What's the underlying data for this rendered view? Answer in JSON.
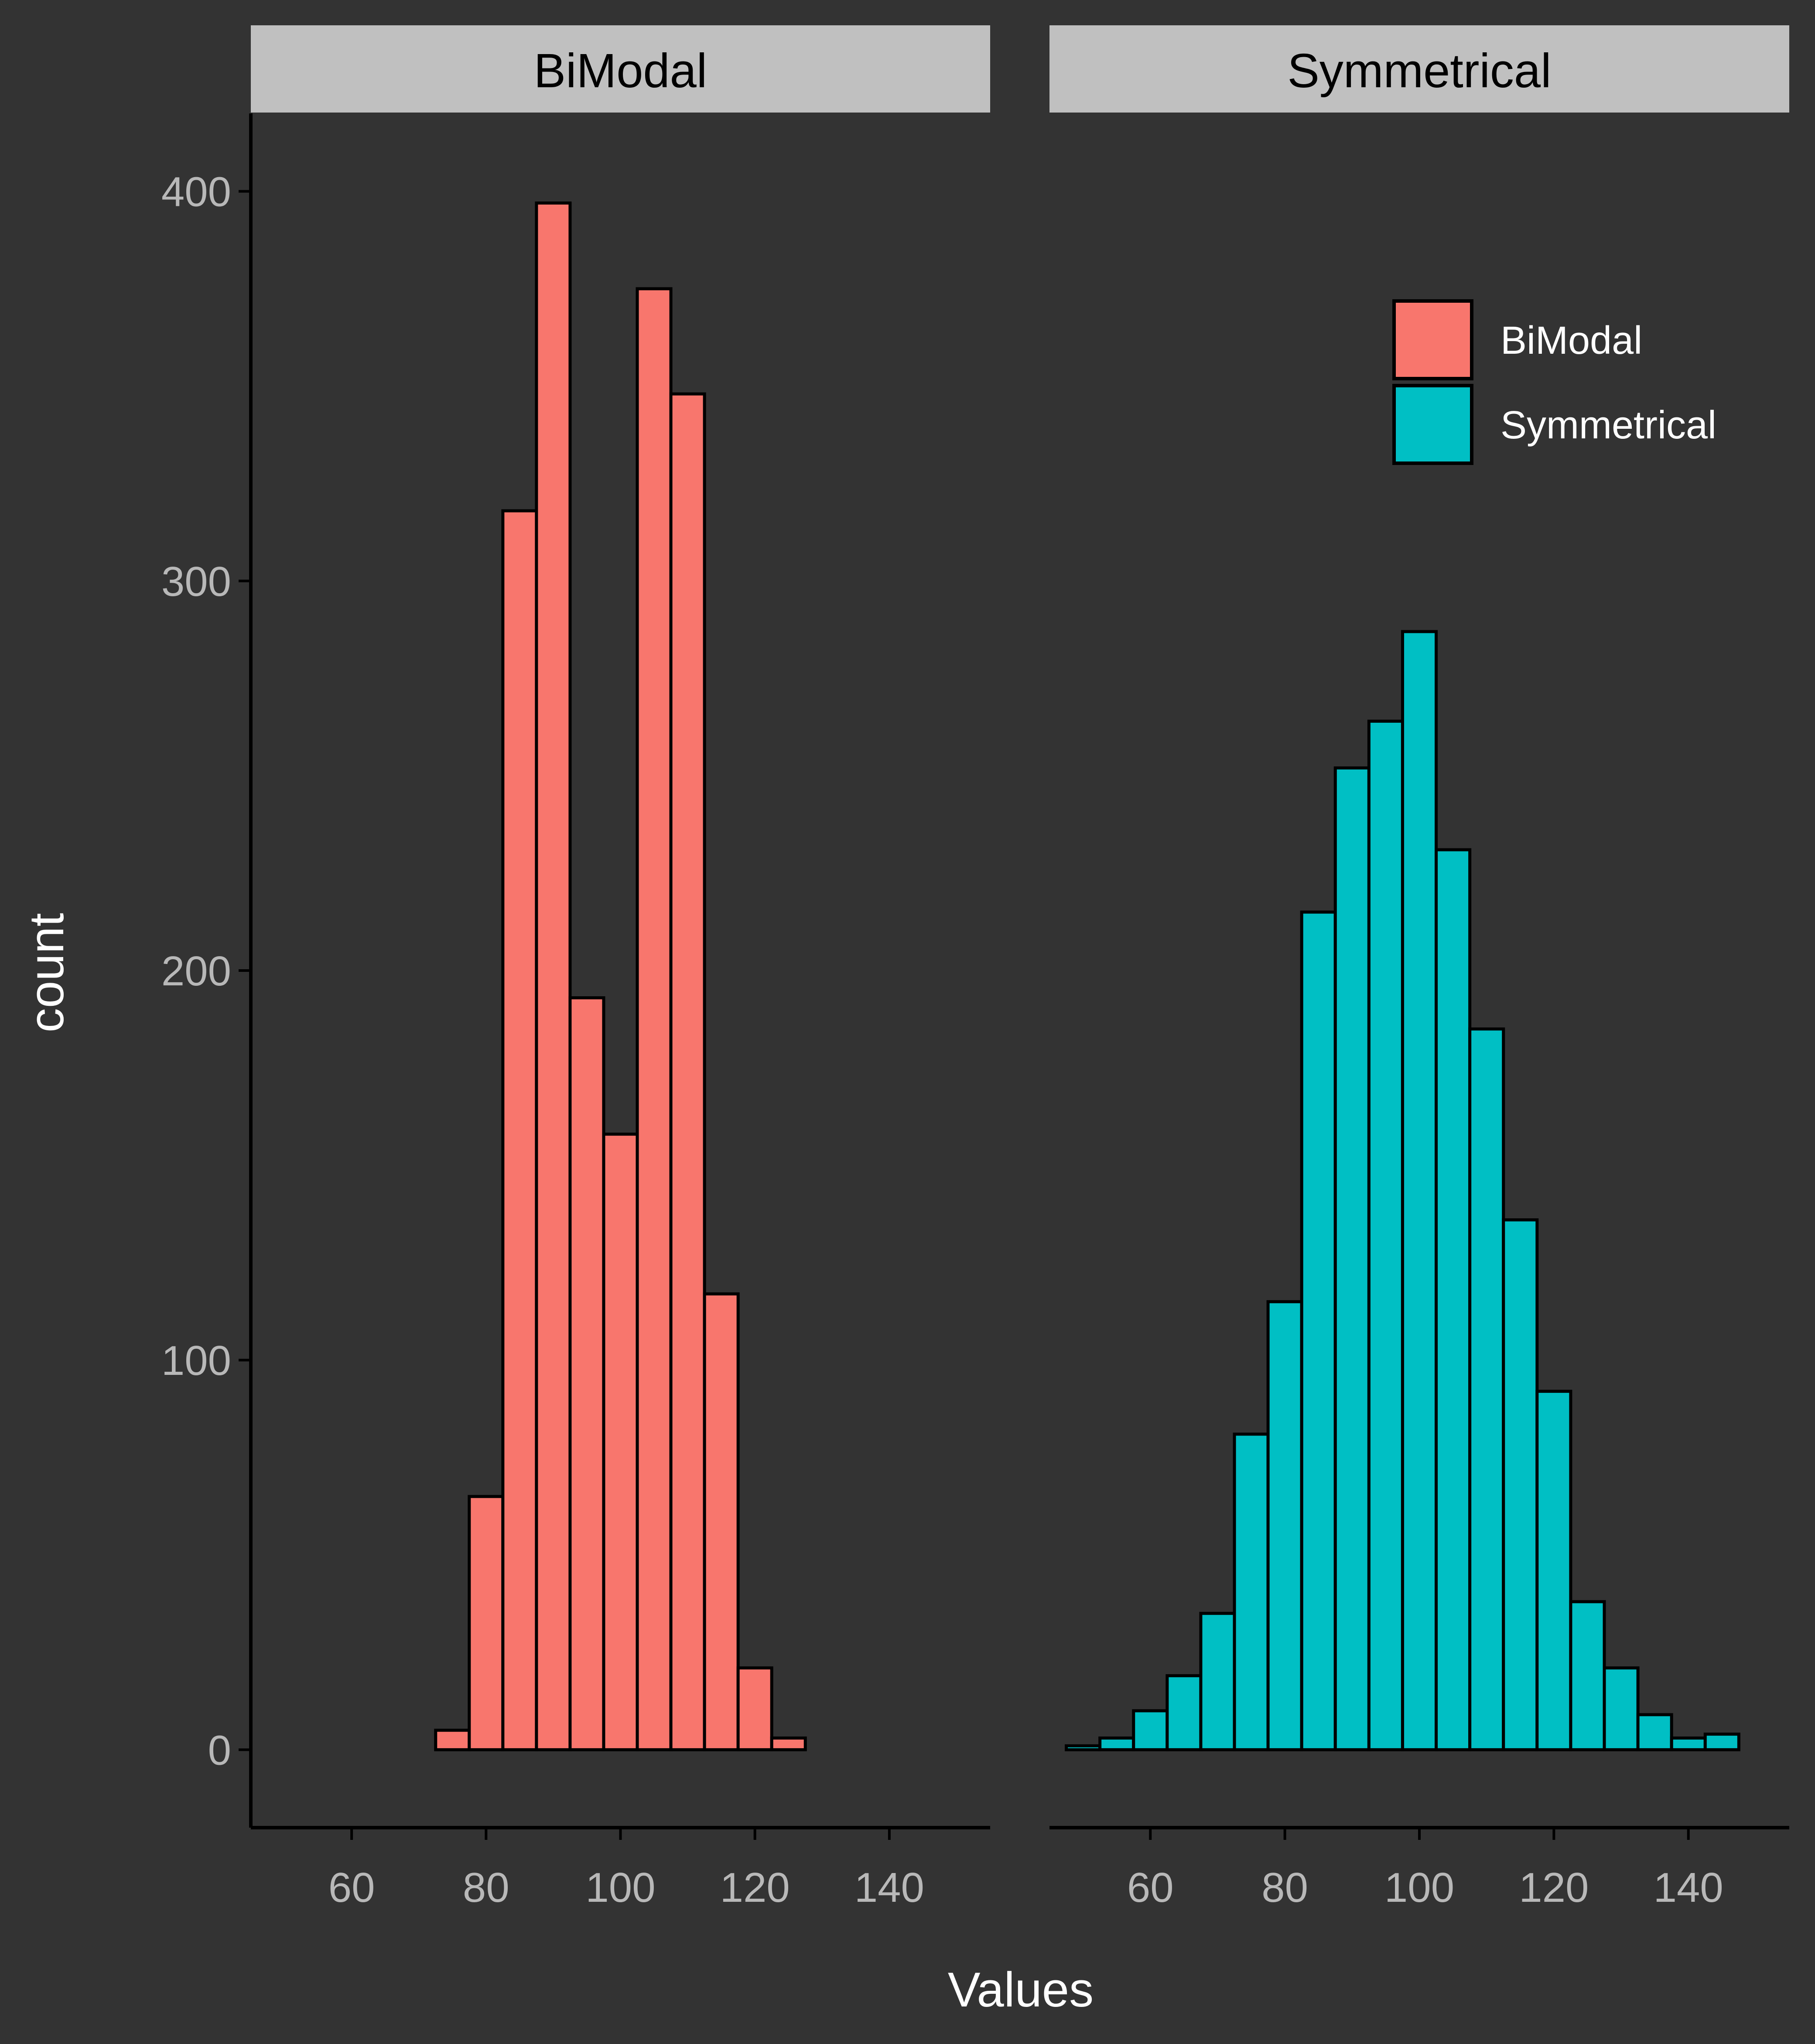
{
  "chart_data": {
    "type": "bar",
    "subtype": "histogram",
    "xlabel": "Values",
    "ylabel": "count",
    "ylim": [
      -20,
      420
    ],
    "xlim": [
      45,
      155
    ],
    "bin_width": 5,
    "y_ticks": [
      0,
      100,
      200,
      300,
      400
    ],
    "y_tick_labels": [
      "0",
      "100",
      "200",
      "300",
      "400"
    ],
    "x_ticks": [
      60,
      80,
      100,
      120,
      140
    ],
    "x_tick_labels": [
      "60",
      "80",
      "100",
      "120",
      "140"
    ],
    "grid": false,
    "legend": {
      "position": "top-right",
      "entries": [
        {
          "label": "BiModal",
          "color": "#F8766D"
        },
        {
          "label": "Symmetrical",
          "color": "#00BFC4"
        }
      ]
    },
    "panels": [
      {
        "strip": "BiModal",
        "color": "#F8766D",
        "bin_centers": [
          50,
          55,
          60,
          65,
          70,
          75,
          80,
          85,
          90,
          95,
          100,
          105,
          110,
          115,
          120,
          125,
          130,
          135,
          140,
          145,
          150
        ],
        "counts": [
          0,
          0,
          0,
          0,
          0,
          5,
          65,
          318,
          397,
          193,
          158,
          375,
          348,
          117,
          21,
          3,
          0,
          0,
          0,
          0,
          0
        ]
      },
      {
        "strip": "Symmetrical",
        "color": "#00BFC4",
        "bin_centers": [
          50,
          55,
          60,
          65,
          70,
          75,
          80,
          85,
          90,
          95,
          100,
          105,
          110,
          115,
          120,
          125,
          130,
          135,
          140,
          145,
          150
        ],
        "counts": [
          1,
          3,
          10,
          19,
          35,
          81,
          115,
          215,
          252,
          264,
          287,
          231,
          185,
          136,
          92,
          38,
          21,
          9,
          3,
          4,
          0
        ]
      }
    ]
  },
  "colors": {
    "background": "#333333",
    "strip": "#c0c0c0",
    "outline": "#000000"
  }
}
